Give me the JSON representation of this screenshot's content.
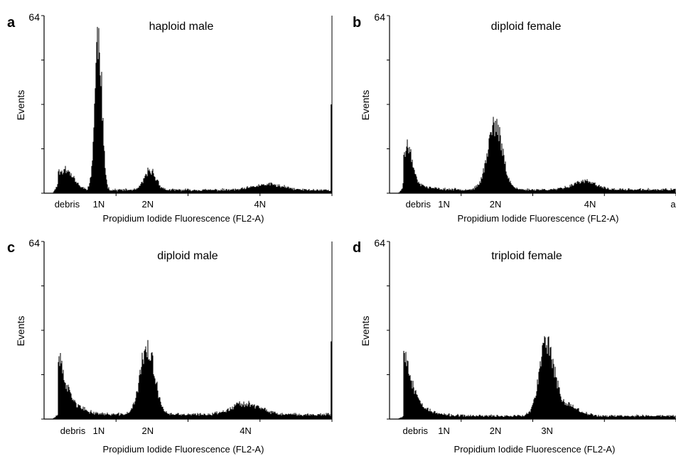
{
  "chart_data": [
    {
      "type": "bar",
      "panel_letter": "a",
      "title": "haploid male",
      "ylabel": "Events",
      "xlabel": "Propidium Iodide Fluorescence (FL2-A)",
      "y_top_tick_label": "64",
      "ylim": [
        0,
        64
      ],
      "x_tick_labels": [
        {
          "label": "debris",
          "position": 0.08
        },
        {
          "label": "1N",
          "position": 0.19
        },
        {
          "label": "2N",
          "position": 0.36
        },
        {
          "label": "4N",
          "position": 0.75
        }
      ],
      "components": [
        {
          "center": 0.08,
          "height": 6,
          "width": 0.025
        },
        {
          "center": 0.19,
          "height": 56,
          "width": 0.012
        },
        {
          "center": 0.37,
          "height": 7,
          "width": 0.02
        },
        {
          "center": 0.78,
          "height": 2,
          "width": 0.05
        }
      ],
      "baseline_range": [
        0.8,
        1.5
      ],
      "decay_from": 0.05,
      "decay_amplitude": 3,
      "extra_edge_value": 32,
      "noise": 0.18,
      "seed": 11
    },
    {
      "type": "bar",
      "panel_letter": "b",
      "title": "diploid female",
      "ylabel": "Events",
      "xlabel": "Propidium Iodide Fluorescence (FL2-A)",
      "y_top_tick_label": "64",
      "ylim": [
        0,
        64
      ],
      "x_tick_labels": [
        {
          "label": "debris",
          "position": 0.1
        },
        {
          "label": "1N",
          "position": 0.19
        },
        {
          "label": "2N",
          "position": 0.37
        },
        {
          "label": "4N",
          "position": 0.7
        },
        {
          "label": "a",
          "position": 0.99
        }
      ],
      "components": [
        {
          "center": 0.07,
          "height": 10,
          "width": 0.012
        },
        {
          "center": 0.37,
          "height": 23,
          "width": 0.026
        },
        {
          "center": 0.68,
          "height": 3,
          "width": 0.04
        }
      ],
      "baseline_range": [
        1.0,
        1.6
      ],
      "decay_from": 0.05,
      "decay_amplitude": 10,
      "extra_edge_value": null,
      "noise": 0.18,
      "seed": 23
    },
    {
      "type": "bar",
      "panel_letter": "c",
      "title": "diploid male",
      "ylabel": "Events",
      "xlabel": "Propidium Iodide Fluorescence (FL2-A)",
      "y_top_tick_label": "64",
      "ylim": [
        0,
        64
      ],
      "x_tick_labels": [
        {
          "label": "debris",
          "position": 0.1
        },
        {
          "label": "1N",
          "position": 0.19
        },
        {
          "label": "2N",
          "position": 0.36
        },
        {
          "label": "4N",
          "position": 0.7
        }
      ],
      "components": [
        {
          "center": 0.36,
          "height": 24,
          "width": 0.025
        },
        {
          "center": 0.7,
          "height": 4,
          "width": 0.05
        }
      ],
      "baseline_range": [
        1.2,
        2.0
      ],
      "decay_from": 0.05,
      "decay_amplitude": 24,
      "extra_edge_value": 28,
      "noise": 0.18,
      "seed": 37
    },
    {
      "type": "bar",
      "panel_letter": "d",
      "title": "triploid female",
      "ylabel": "Events",
      "xlabel": "Propidium Iodide Fluorescence (FL2-A)",
      "y_top_tick_label": "64",
      "ylim": [
        0,
        64
      ],
      "x_tick_labels": [
        {
          "label": "debris",
          "position": 0.09
        },
        {
          "label": "1N",
          "position": 0.19
        },
        {
          "label": "2N",
          "position": 0.37
        },
        {
          "label": "3N",
          "position": 0.55
        }
      ],
      "components": [
        {
          "center": 0.55,
          "height": 26,
          "width": 0.025
        },
        {
          "center": 0.62,
          "height": 4,
          "width": 0.04
        }
      ],
      "baseline_range": [
        0.8,
        1.5
      ],
      "decay_from": 0.05,
      "decay_amplitude": 27,
      "extra_edge_value": null,
      "noise": 0.18,
      "seed": 53
    }
  ]
}
